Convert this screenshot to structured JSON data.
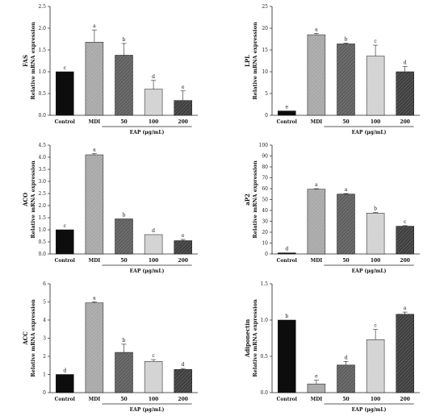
{
  "colors": {
    "control": "#0d0d0d",
    "mdi": "#a8a8a8",
    "eap50": "#5e5e5e",
    "eap100": "#d2d2d2",
    "eap200": "#3e3e3e"
  },
  "chart_data": [
    {
      "type": "bar",
      "title": "",
      "gene": "FAS",
      "ylabel": "Relative mRNA expression",
      "xlabel": "EAP (μg/mL)",
      "categories": [
        "Control",
        "MDI",
        "50",
        "100",
        "200"
      ],
      "values": [
        1.0,
        1.68,
        1.38,
        0.6,
        0.34
      ],
      "errors": [
        0.0,
        0.28,
        0.27,
        0.2,
        0.22
      ],
      "letters": [
        "c",
        "a",
        "b",
        "d",
        "e"
      ],
      "ylim": [
        0,
        2.5
      ],
      "yticks": [
        "0.0",
        "0.5",
        "1.0",
        "1.5",
        "2.0",
        "2.5"
      ]
    },
    {
      "type": "bar",
      "title": "",
      "gene": "LPL",
      "ylabel": "Relative mRNA expression",
      "xlabel": "EAP (μg/mL)",
      "categories": [
        "Control",
        "MDI",
        "50",
        "100",
        "200"
      ],
      "values": [
        1.0,
        18.5,
        16.4,
        13.6,
        10.0
      ],
      "errors": [
        0.0,
        0.3,
        0.2,
        2.5,
        1.2
      ],
      "letters": [
        "e",
        "a",
        "b",
        "c",
        "d"
      ],
      "ylim": [
        0,
        25
      ],
      "yticks": [
        "0",
        "5",
        "10",
        "15",
        "20",
        "25"
      ]
    },
    {
      "type": "bar",
      "title": "",
      "gene": "ACO",
      "ylabel": "Relative mRNA expression",
      "xlabel": "EAP (μg/mL)",
      "categories": [
        "Control",
        "MDI",
        "50",
        "100",
        "200"
      ],
      "values": [
        1.0,
        4.1,
        1.45,
        0.8,
        0.55
      ],
      "errors": [
        0.0,
        0.05,
        0.0,
        0.0,
        0.05
      ],
      "letters": [
        "c",
        "a",
        "b",
        "d",
        "e"
      ],
      "ylim": [
        0,
        4.5
      ],
      "yticks": [
        "0.0",
        "0.5",
        "1.0",
        "1.5",
        "2.0",
        "2.5",
        "3.0",
        "3.5",
        "4.0",
        "4.5"
      ]
    },
    {
      "type": "bar",
      "title": "",
      "gene": "aP2",
      "ylabel": "Relative mRNA expression",
      "xlabel": "EAP (μg/mL)",
      "categories": [
        "Control",
        "MDI",
        "50",
        "100",
        "200"
      ],
      "values": [
        1.0,
        59.5,
        55.0,
        37.5,
        25.5
      ],
      "errors": [
        0.0,
        0.5,
        0.5,
        0.5,
        0.5
      ],
      "letters": [
        "d",
        "a",
        "a",
        "b",
        "c"
      ],
      "ylim": [
        0,
        100
      ],
      "yticks": [
        "0",
        "10",
        "20",
        "30",
        "40",
        "50",
        "60",
        "70",
        "80",
        "90",
        "100"
      ]
    },
    {
      "type": "bar",
      "title": "",
      "gene": "ACC",
      "ylabel": "Relative mRNA expression",
      "xlabel": "EAP (μg/mL)",
      "categories": [
        "Control",
        "MDI",
        "50",
        "100",
        "200"
      ],
      "values": [
        1.0,
        4.95,
        2.22,
        1.72,
        1.28
      ],
      "errors": [
        0.0,
        0.05,
        0.45,
        0.1,
        0.05
      ],
      "letters": [
        "d",
        "a",
        "b",
        "c",
        "d"
      ],
      "ylim": [
        0,
        6
      ],
      "yticks": [
        "0",
        "1",
        "2",
        "3",
        "4",
        "5",
        "6"
      ]
    },
    {
      "type": "bar",
      "title": "",
      "gene": "Adiponectin",
      "ylabel": "Relative mRNA expression",
      "xlabel": "EAP (μg/mL)",
      "categories": [
        "Control",
        "MDI",
        "50",
        "100",
        "200"
      ],
      "values": [
        1.0,
        0.12,
        0.38,
        0.73,
        1.08
      ],
      "errors": [
        0.0,
        0.05,
        0.05,
        0.14,
        0.03
      ],
      "letters": [
        "b",
        "e",
        "d",
        "c",
        "a"
      ],
      "ylim": [
        0,
        1.5
      ],
      "yticks": [
        "0.0",
        "0.5",
        "1.0",
        "1.5"
      ]
    }
  ]
}
